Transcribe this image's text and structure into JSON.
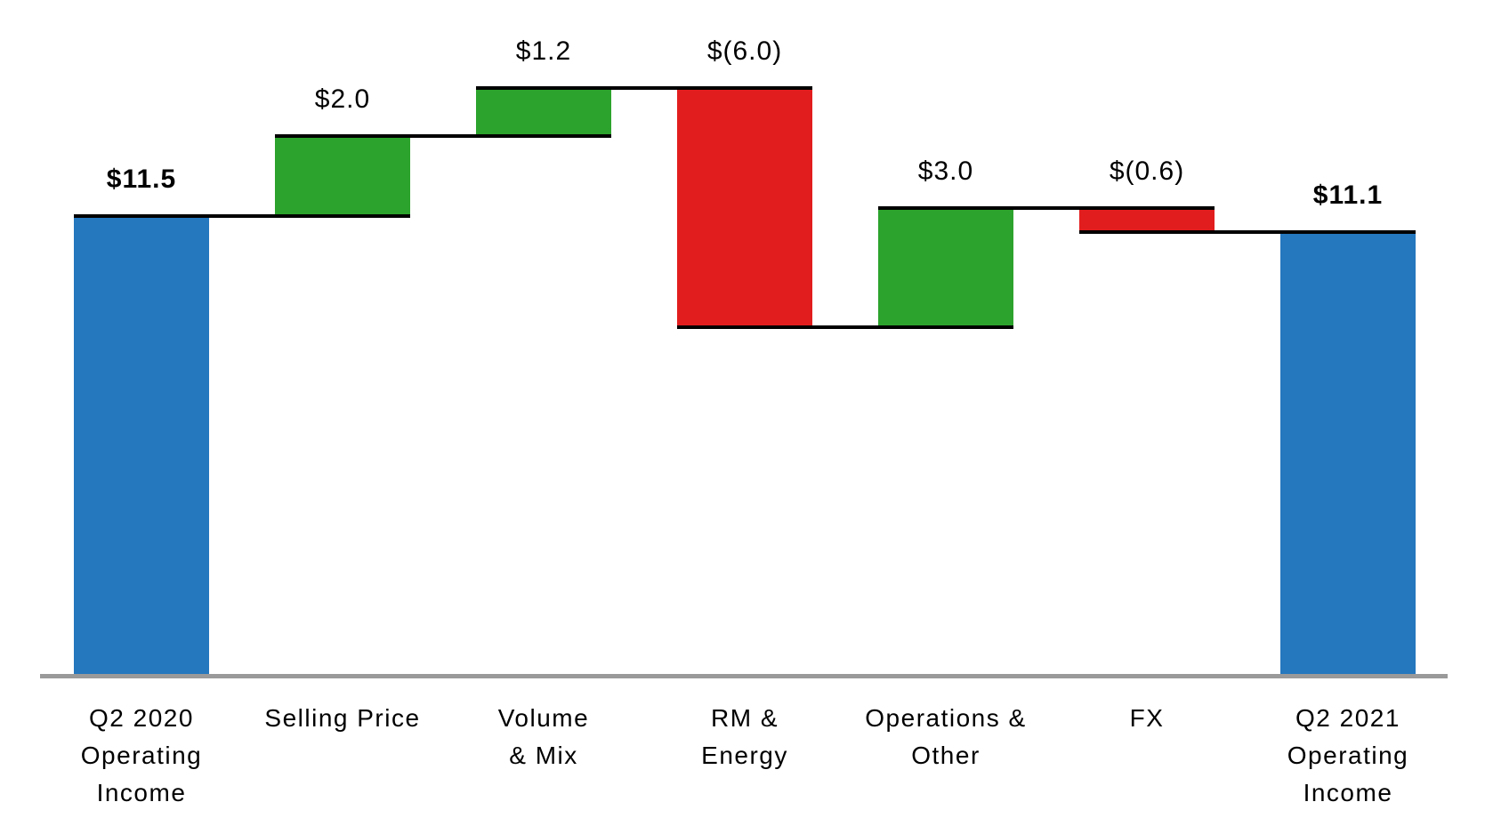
{
  "chart_data": {
    "type": "bar",
    "subtype": "waterfall",
    "title": "",
    "xlabel": "",
    "ylabel": "",
    "ylim": [
      0,
      17
    ],
    "grid": false,
    "y_axis_visible": false,
    "legend": "none",
    "categories": [
      "Q2 2020 Operating Income",
      "Selling Price",
      "Volume & Mix",
      "RM & Energy",
      "Operations & Other",
      "FX",
      "Q2 2021 Operating Income"
    ],
    "values": [
      11.5,
      2.0,
      1.2,
      -6.0,
      3.0,
      -0.6,
      11.1
    ],
    "cumulative_levels": [
      11.5,
      13.5,
      14.7,
      8.7,
      11.7,
      11.1,
      11.1
    ],
    "items": [
      {
        "label_lines": [
          "Q2 2020",
          "Operating",
          "Income"
        ],
        "value": 11.5,
        "display": "$11.5",
        "kind": "total"
      },
      {
        "label_lines": [
          "Selling Price"
        ],
        "value": 2.0,
        "display": "$2.0",
        "kind": "increase"
      },
      {
        "label_lines": [
          "Volume",
          "& Mix"
        ],
        "value": 1.2,
        "display": "$1.2",
        "kind": "increase"
      },
      {
        "label_lines": [
          "RM &",
          "Energy"
        ],
        "value": -6.0,
        "display": "$(6.0)",
        "kind": "decrease"
      },
      {
        "label_lines": [
          "Operations &",
          "Other"
        ],
        "value": 3.0,
        "display": "$3.0",
        "kind": "increase"
      },
      {
        "label_lines": [
          "FX"
        ],
        "value": -0.6,
        "display": "$(0.6)",
        "kind": "decrease"
      },
      {
        "label_lines": [
          "Q2 2021",
          "Operating",
          "Income"
        ],
        "value": 11.1,
        "display": "$11.1",
        "kind": "total"
      }
    ],
    "colors": {
      "total": "#2577BE",
      "increase": "#2CA32C",
      "decrease": "#E21D1E",
      "connector_line": "#000000",
      "axis_line": "#9A9A9A",
      "label_text": "#000000",
      "background": "#FFFFFF"
    }
  }
}
